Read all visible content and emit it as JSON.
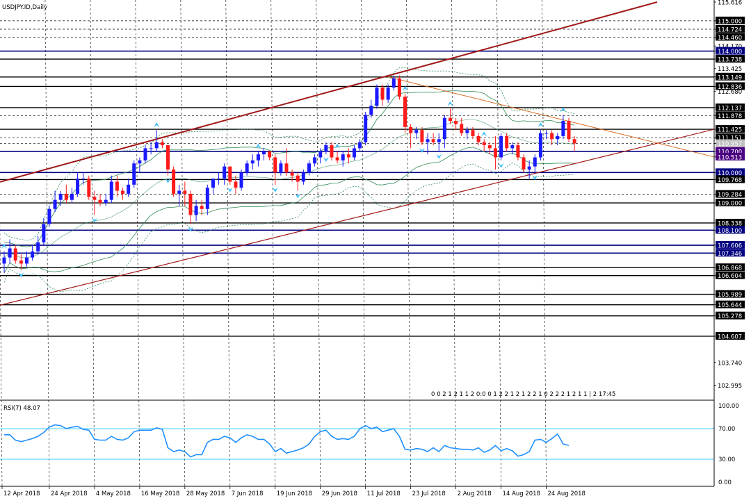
{
  "window": {
    "symbol_label": "USDJPY.ID,Daily"
  },
  "price_axis": {
    "labels": [
      "115.616",
      "115.000",
      "114.724",
      "114.460",
      "114.170",
      "114.000",
      "113.738",
      "113.425",
      "113.149",
      "112.836",
      "112.680",
      "112.137",
      "111.878",
      "111.425",
      "111.151",
      "110.957",
      "110.700",
      "110.513",
      "110.000",
      "109.768",
      "109.284",
      "109.000",
      "108.338",
      "108.100",
      "107.606",
      "107.346",
      "106.868",
      "106.604",
      "105.989",
      "105.644",
      "105.278",
      "104.607",
      "103.740",
      "102.995"
    ]
  },
  "time_axis": {
    "labels": [
      "12 Apr 2018",
      "24 Apr 2018",
      "4 May 2018",
      "16 May 2018",
      "28 May 2018",
      "7 Jun 2018",
      "19 Jun 2018",
      "29 Jun 2018",
      "11 Jul 2018",
      "23 Jul 2018",
      "2 Aug 2018",
      "14 Aug 2018",
      "24 Aug 2018"
    ]
  },
  "info_strip": {
    "text": "0 0 2 1 2 1 1 2 0:0 0 1 2 2 1 2 1 2 2 1 0 2 2 2 1 2 1 1 | 2 17:45"
  },
  "rsi": {
    "label": "RSI(7) 48.07",
    "levels_labels": [
      "100.00",
      "70.00",
      "30.00",
      "0.00"
    ]
  },
  "colors": {
    "bull": "#1a1aff",
    "bear": "#ff1a1a",
    "trend_main": "#a01818",
    "trend_orange": "#d2691e",
    "bollinger": "#2e8b57",
    "envelope": "#2e8b57",
    "rsi_line": "#1e90ff",
    "rsi_levels": "#00bfff",
    "fractal": "#40c0ff",
    "hline_navy": "#000080",
    "hline_black": "#000000"
  },
  "chart_data": {
    "type": "candlestick",
    "title": "USDJPY.ID,Daily",
    "ylim": [
      102.5,
      115.616
    ],
    "candles": [
      {
        "date": "12 Apr 2018",
        "o": 107.0,
        "h": 107.4,
        "l": 106.7,
        "c": 107.2
      },
      {
        "date": "13 Apr 2018",
        "o": 107.2,
        "h": 107.8,
        "l": 107.0,
        "c": 107.5
      },
      {
        "date": "16 Apr 2018",
        "o": 107.5,
        "h": 107.6,
        "l": 107.0,
        "c": 107.1
      },
      {
        "date": "17 Apr 2018",
        "o": 107.1,
        "h": 107.3,
        "l": 106.8,
        "c": 107.0
      },
      {
        "date": "18 Apr 2018",
        "o": 107.0,
        "h": 107.4,
        "l": 106.9,
        "c": 107.2
      },
      {
        "date": "19 Apr 2018",
        "o": 107.2,
        "h": 107.6,
        "l": 107.1,
        "c": 107.4
      },
      {
        "date": "20 Apr 2018",
        "o": 107.4,
        "h": 107.9,
        "l": 107.3,
        "c": 107.7
      },
      {
        "date": "23 Apr 2018",
        "o": 107.7,
        "h": 108.5,
        "l": 107.6,
        "c": 108.3
      },
      {
        "date": "24 Apr 2018",
        "o": 108.3,
        "h": 108.9,
        "l": 108.2,
        "c": 108.8
      },
      {
        "date": "25 Apr 2018",
        "o": 108.8,
        "h": 109.4,
        "l": 108.7,
        "c": 109.1
      },
      {
        "date": "26 Apr 2018",
        "o": 109.1,
        "h": 109.4,
        "l": 108.9,
        "c": 109.3
      },
      {
        "date": "27 Apr 2018",
        "o": 109.3,
        "h": 109.6,
        "l": 109.0,
        "c": 109.1
      },
      {
        "date": "30 Apr 2018",
        "o": 109.1,
        "h": 109.5,
        "l": 109.0,
        "c": 109.3
      },
      {
        "date": "1 May 2018",
        "o": 109.3,
        "h": 110.0,
        "l": 109.2,
        "c": 109.8
      },
      {
        "date": "2 May 2018",
        "o": 109.8,
        "h": 110.0,
        "l": 109.6,
        "c": 109.8
      },
      {
        "date": "3 May 2018",
        "o": 109.8,
        "h": 109.9,
        "l": 109.1,
        "c": 109.2
      },
      {
        "date": "4 May 2018",
        "o": 109.2,
        "h": 109.4,
        "l": 108.6,
        "c": 109.1
      },
      {
        "date": "7 May 2018",
        "o": 109.1,
        "h": 109.3,
        "l": 108.9,
        "c": 109.0
      },
      {
        "date": "8 May 2018",
        "o": 109.0,
        "h": 109.3,
        "l": 108.9,
        "c": 109.1
      },
      {
        "date": "9 May 2018",
        "o": 109.1,
        "h": 109.9,
        "l": 109.0,
        "c": 109.7
      },
      {
        "date": "10 May 2018",
        "o": 109.7,
        "h": 109.9,
        "l": 109.2,
        "c": 109.4
      },
      {
        "date": "11 May 2018",
        "o": 109.4,
        "h": 109.5,
        "l": 109.1,
        "c": 109.3
      },
      {
        "date": "14 May 2018",
        "o": 109.3,
        "h": 109.8,
        "l": 109.2,
        "c": 109.6
      },
      {
        "date": "15 May 2018",
        "o": 109.6,
        "h": 110.4,
        "l": 109.5,
        "c": 110.3
      },
      {
        "date": "16 May 2018",
        "o": 110.3,
        "h": 110.5,
        "l": 110.0,
        "c": 110.4
      },
      {
        "date": "17 May 2018",
        "o": 110.4,
        "h": 110.9,
        "l": 110.3,
        "c": 110.8
      },
      {
        "date": "18 May 2018",
        "o": 110.8,
        "h": 111.0,
        "l": 110.6,
        "c": 110.8
      },
      {
        "date": "21 May 2018",
        "o": 110.8,
        "h": 111.4,
        "l": 110.7,
        "c": 111.0
      },
      {
        "date": "22 May 2018",
        "o": 111.0,
        "h": 111.1,
        "l": 110.8,
        "c": 110.9
      },
      {
        "date": "23 May 2018",
        "o": 110.9,
        "h": 110.9,
        "l": 109.9,
        "c": 110.1
      },
      {
        "date": "24 May 2018",
        "o": 110.1,
        "h": 110.2,
        "l": 109.2,
        "c": 109.3
      },
      {
        "date": "25 May 2018",
        "o": 109.3,
        "h": 109.6,
        "l": 108.9,
        "c": 109.4
      },
      {
        "date": "28 May 2018",
        "o": 109.4,
        "h": 109.7,
        "l": 108.9,
        "c": 109.3
      },
      {
        "date": "29 May 2018",
        "o": 109.3,
        "h": 109.4,
        "l": 108.3,
        "c": 108.6
      },
      {
        "date": "30 May 2018",
        "o": 108.6,
        "h": 109.1,
        "l": 108.4,
        "c": 108.9
      },
      {
        "date": "31 May 2018",
        "o": 108.9,
        "h": 109.1,
        "l": 108.6,
        "c": 108.8
      },
      {
        "date": "1 Jun 2018",
        "o": 108.8,
        "h": 109.6,
        "l": 108.6,
        "c": 109.5
      },
      {
        "date": "4 Jun 2018",
        "o": 109.5,
        "h": 109.8,
        "l": 109.3,
        "c": 109.8
      },
      {
        "date": "5 Jun 2018",
        "o": 109.8,
        "h": 110.0,
        "l": 109.6,
        "c": 109.8
      },
      {
        "date": "6 Jun 2018",
        "o": 109.8,
        "h": 110.3,
        "l": 109.6,
        "c": 110.2
      },
      {
        "date": "7 Jun 2018",
        "o": 110.2,
        "h": 110.2,
        "l": 109.6,
        "c": 109.7
      },
      {
        "date": "8 Jun 2018",
        "o": 109.7,
        "h": 109.9,
        "l": 109.3,
        "c": 109.5
      },
      {
        "date": "11 Jun 2018",
        "o": 109.5,
        "h": 110.1,
        "l": 109.4,
        "c": 110.0
      },
      {
        "date": "12 Jun 2018",
        "o": 110.0,
        "h": 110.4,
        "l": 109.9,
        "c": 110.3
      },
      {
        "date": "13 Jun 2018",
        "o": 110.3,
        "h": 110.6,
        "l": 110.1,
        "c": 110.4
      },
      {
        "date": "14 Jun 2018",
        "o": 110.4,
        "h": 110.7,
        "l": 110.2,
        "c": 110.6
      },
      {
        "date": "15 Jun 2018",
        "o": 110.6,
        "h": 110.8,
        "l": 110.4,
        "c": 110.7
      },
      {
        "date": "18 Jun 2018",
        "o": 110.7,
        "h": 110.7,
        "l": 110.4,
        "c": 110.5
      },
      {
        "date": "19 Jun 2018",
        "o": 110.5,
        "h": 110.6,
        "l": 109.6,
        "c": 110.0
      },
      {
        "date": "20 Jun 2018",
        "o": 110.0,
        "h": 110.4,
        "l": 109.9,
        "c": 110.3
      },
      {
        "date": "21 Jun 2018",
        "o": 110.3,
        "h": 110.8,
        "l": 109.9,
        "c": 110.0
      },
      {
        "date": "22 Jun 2018",
        "o": 110.0,
        "h": 110.1,
        "l": 109.7,
        "c": 109.9
      },
      {
        "date": "25 Jun 2018",
        "o": 109.9,
        "h": 110.0,
        "l": 109.4,
        "c": 109.7
      },
      {
        "date": "26 Jun 2018",
        "o": 109.7,
        "h": 110.1,
        "l": 109.6,
        "c": 110.0
      },
      {
        "date": "27 Jun 2018",
        "o": 110.0,
        "h": 110.4,
        "l": 109.9,
        "c": 110.3
      },
      {
        "date": "28 Jun 2018",
        "o": 110.3,
        "h": 110.6,
        "l": 110.2,
        "c": 110.5
      },
      {
        "date": "29 Jun 2018",
        "o": 110.5,
        "h": 110.8,
        "l": 110.3,
        "c": 110.7
      },
      {
        "date": "2 Jul 2018",
        "o": 110.7,
        "h": 111.0,
        "l": 110.6,
        "c": 110.9
      },
      {
        "date": "3 Jul 2018",
        "o": 110.9,
        "h": 111.0,
        "l": 110.4,
        "c": 110.5
      },
      {
        "date": "4 Jul 2018",
        "o": 110.5,
        "h": 110.7,
        "l": 110.3,
        "c": 110.4
      },
      {
        "date": "5 Jul 2018",
        "o": 110.4,
        "h": 110.7,
        "l": 110.2,
        "c": 110.6
      },
      {
        "date": "6 Jul 2018",
        "o": 110.6,
        "h": 110.8,
        "l": 110.3,
        "c": 110.5
      },
      {
        "date": "9 Jul 2018",
        "o": 110.5,
        "h": 110.9,
        "l": 110.4,
        "c": 110.8
      },
      {
        "date": "10 Jul 2018",
        "o": 110.8,
        "h": 111.1,
        "l": 110.7,
        "c": 111.0
      },
      {
        "date": "11 Jul 2018",
        "o": 111.0,
        "h": 112.0,
        "l": 110.9,
        "c": 111.9
      },
      {
        "date": "12 Jul 2018",
        "o": 111.9,
        "h": 112.4,
        "l": 111.8,
        "c": 112.2
      },
      {
        "date": "13 Jul 2018",
        "o": 112.2,
        "h": 112.9,
        "l": 112.1,
        "c": 112.8
      },
      {
        "date": "16 Jul 2018",
        "o": 112.8,
        "h": 112.9,
        "l": 112.2,
        "c": 112.4
      },
      {
        "date": "17 Jul 2018",
        "o": 112.4,
        "h": 112.9,
        "l": 112.3,
        "c": 112.8
      },
      {
        "date": "18 Jul 2018",
        "o": 112.8,
        "h": 113.2,
        "l": 112.7,
        "c": 113.1
      },
      {
        "date": "19 Jul 2018",
        "o": 113.1,
        "h": 113.2,
        "l": 112.4,
        "c": 112.5
      },
      {
        "date": "20 Jul 2018",
        "o": 112.5,
        "h": 112.6,
        "l": 111.3,
        "c": 111.5
      },
      {
        "date": "23 Jul 2018",
        "o": 111.5,
        "h": 111.6,
        "l": 110.8,
        "c": 111.3
      },
      {
        "date": "24 Jul 2018",
        "o": 111.3,
        "h": 111.5,
        "l": 111.1,
        "c": 111.4
      },
      {
        "date": "25 Jul 2018",
        "o": 111.4,
        "h": 111.5,
        "l": 110.9,
        "c": 111.0
      },
      {
        "date": "26 Jul 2018",
        "o": 111.0,
        "h": 111.3,
        "l": 110.6,
        "c": 111.1
      },
      {
        "date": "27 Jul 2018",
        "o": 111.1,
        "h": 111.3,
        "l": 110.9,
        "c": 111.0
      },
      {
        "date": "30 Jul 2018",
        "o": 111.0,
        "h": 111.3,
        "l": 110.7,
        "c": 111.1
      },
      {
        "date": "31 Jul 2018",
        "o": 111.1,
        "h": 111.9,
        "l": 110.8,
        "c": 111.8
      },
      {
        "date": "1 Aug 2018",
        "o": 111.8,
        "h": 112.1,
        "l": 111.6,
        "c": 111.7
      },
      {
        "date": "2 Aug 2018",
        "o": 111.7,
        "h": 111.8,
        "l": 111.4,
        "c": 111.6
      },
      {
        "date": "3 Aug 2018",
        "o": 111.6,
        "h": 111.8,
        "l": 111.2,
        "c": 111.3
      },
      {
        "date": "6 Aug 2018",
        "o": 111.3,
        "h": 111.5,
        "l": 111.1,
        "c": 111.4
      },
      {
        "date": "7 Aug 2018",
        "o": 111.4,
        "h": 111.5,
        "l": 111.1,
        "c": 111.2
      },
      {
        "date": "8 Aug 2018",
        "o": 111.2,
        "h": 111.3,
        "l": 110.9,
        "c": 111.0
      },
      {
        "date": "9 Aug 2018",
        "o": 111.0,
        "h": 111.1,
        "l": 110.7,
        "c": 110.9
      },
      {
        "date": "10 Aug 2018",
        "o": 110.9,
        "h": 111.0,
        "l": 110.6,
        "c": 110.8
      },
      {
        "date": "13 Aug 2018",
        "o": 110.8,
        "h": 111.2,
        "l": 110.1,
        "c": 110.5
      },
      {
        "date": "14 Aug 2018",
        "o": 110.5,
        "h": 111.3,
        "l": 110.4,
        "c": 111.2
      },
      {
        "date": "15 Aug 2018",
        "o": 111.2,
        "h": 111.3,
        "l": 110.7,
        "c": 110.8
      },
      {
        "date": "16 Aug 2018",
        "o": 110.8,
        "h": 111.0,
        "l": 110.6,
        "c": 110.9
      },
      {
        "date": "17 Aug 2018",
        "o": 110.9,
        "h": 111.0,
        "l": 110.4,
        "c": 110.5
      },
      {
        "date": "20 Aug 2018",
        "o": 110.5,
        "h": 110.6,
        "l": 110.0,
        "c": 110.1
      },
      {
        "date": "21 Aug 2018",
        "o": 110.1,
        "h": 110.4,
        "l": 109.8,
        "c": 110.2
      },
      {
        "date": "22 Aug 2018",
        "o": 110.2,
        "h": 110.6,
        "l": 110.0,
        "c": 110.5
      },
      {
        "date": "23 Aug 2018",
        "o": 110.5,
        "h": 111.4,
        "l": 110.4,
        "c": 111.3
      },
      {
        "date": "24 Aug 2018",
        "o": 111.3,
        "h": 111.4,
        "l": 111.1,
        "c": 111.3
      },
      {
        "date": "27 Aug 2018",
        "o": 111.3,
        "h": 111.4,
        "l": 110.9,
        "c": 111.1
      },
      {
        "date": "28 Aug 2018",
        "o": 111.1,
        "h": 111.3,
        "l": 110.9,
        "c": 111.2
      },
      {
        "date": "29 Aug 2018",
        "o": 111.2,
        "h": 111.9,
        "l": 111.1,
        "c": 111.7
      },
      {
        "date": "30 Aug 2018",
        "o": 111.7,
        "h": 111.8,
        "l": 111.0,
        "c": 111.1
      },
      {
        "date": "31 Aug 2018",
        "o": 111.1,
        "h": 111.2,
        "l": 110.7,
        "c": 110.96
      }
    ],
    "horizontal_levels_black": [
      115.0,
      114.724,
      114.46,
      113.738,
      113.149,
      112.836,
      112.137,
      111.878,
      111.425,
      111.151,
      110.957,
      109.768,
      109.284,
      109.0,
      108.338,
      107.606,
      107.346,
      106.868,
      106.604,
      105.989,
      105.644,
      105.278,
      104.607
    ],
    "horizontal_levels_navy": [
      114.0,
      110.7,
      110.0,
      108.1,
      107.606,
      107.346
    ],
    "highlighted_levels": [
      110.7,
      110.513
    ],
    "rsi": {
      "period": 7,
      "last_value": 48.07,
      "levels": [
        70,
        30
      ],
      "ylim": [
        0,
        100
      ],
      "values": [
        62,
        62,
        55,
        53,
        55,
        57,
        60,
        65,
        72,
        75,
        74,
        70,
        72,
        73,
        69,
        68,
        56,
        55,
        55,
        60,
        56,
        55,
        58,
        66,
        68,
        68,
        68,
        71,
        69,
        45,
        40,
        42,
        40,
        33,
        36,
        36,
        52,
        56,
        56,
        60,
        58,
        52,
        58,
        62,
        60,
        56,
        56,
        50,
        40,
        44,
        38,
        40,
        42,
        45,
        50,
        60,
        66,
        68,
        60,
        56,
        57,
        56,
        60,
        70,
        74,
        70,
        72,
        66,
        68,
        70,
        60,
        43,
        42,
        44,
        43,
        40,
        45,
        40,
        48,
        45,
        44,
        43,
        43,
        42,
        45,
        39,
        42,
        48,
        41,
        44,
        41,
        34,
        36,
        40,
        55,
        56,
        52,
        57,
        63,
        50,
        48.07
      ]
    }
  }
}
